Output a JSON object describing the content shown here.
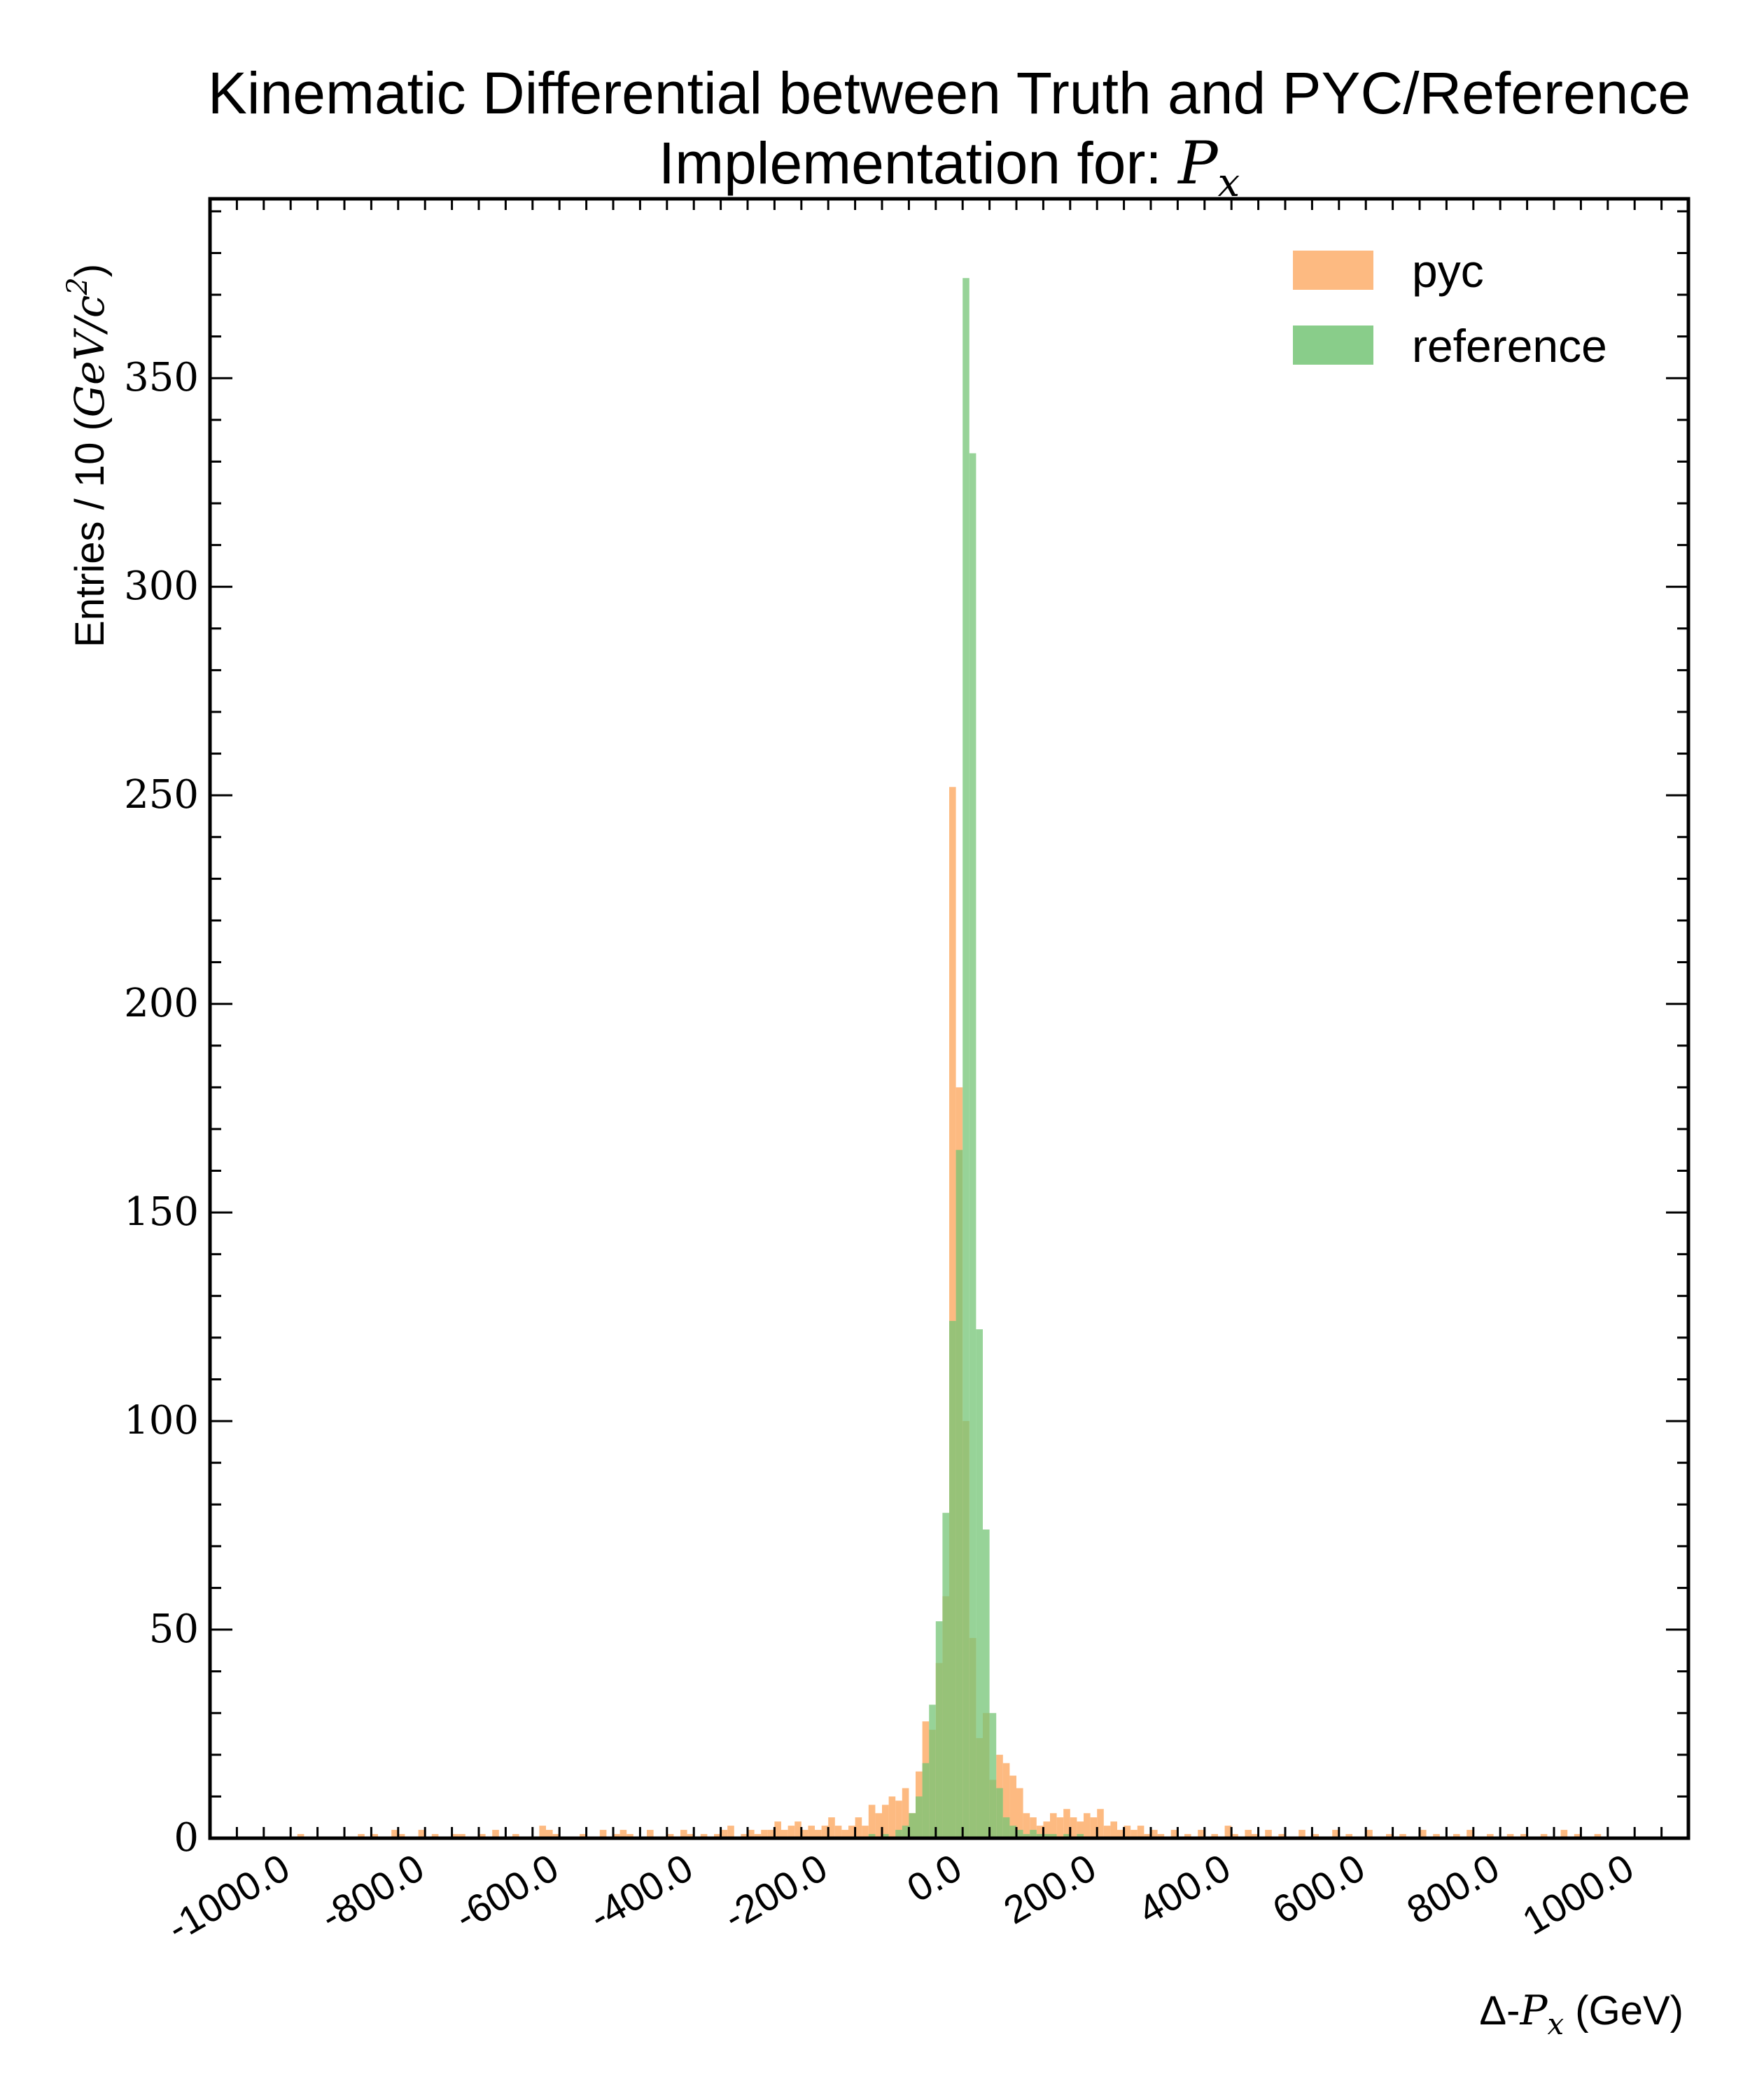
{
  "chart_data": {
    "type": "histogram",
    "title_line1": "Kinematic Differential between Truth and PYC/Reference",
    "title_line2_text": "Implementation for: ",
    "title_line2_math": "P",
    "title_line2_sub": "x",
    "ylabel_text": "Entries / 10 (",
    "ylabel_math": "GeV/c",
    "ylabel_sup": "2",
    "ylabel_close": ")",
    "xlabel_pre": "Δ-",
    "xlabel_math": "P",
    "xlabel_sub": "x",
    "xlabel_post": " (GeV)",
    "xlim": [
      -1100,
      1100
    ],
    "ylim": [
      0,
      393
    ],
    "bin_width": 10,
    "x_ticks": [
      -1000,
      -800,
      -600,
      -400,
      -200,
      0,
      200,
      400,
      600,
      800,
      1000
    ],
    "x_tick_labels": [
      "-1000.0",
      "-800.0",
      "-600.0",
      "-400.0",
      "-200.0",
      "0.0",
      "200.0",
      "400.0",
      "600.0",
      "800.0",
      "1000.0"
    ],
    "y_ticks": [
      0,
      50,
      100,
      150,
      200,
      250,
      300,
      350
    ],
    "y_tick_labels": [
      "0",
      "50",
      "100",
      "150",
      "200",
      "250",
      "300",
      "350"
    ],
    "legend_position": "top-right",
    "series": [
      {
        "name": "pyc",
        "color": "#fdae6b",
        "bins": [
          [
            -970,
            1
          ],
          [
            -880,
            1
          ],
          [
            -860,
            1
          ],
          [
            -830,
            2
          ],
          [
            -820,
            1
          ],
          [
            -790,
            2
          ],
          [
            -770,
            1
          ],
          [
            -740,
            1
          ],
          [
            -730,
            1
          ],
          [
            -700,
            1
          ],
          [
            -680,
            2
          ],
          [
            -650,
            1
          ],
          [
            -610,
            3
          ],
          [
            -600,
            2
          ],
          [
            -590,
            1
          ],
          [
            -550,
            1
          ],
          [
            -520,
            2
          ],
          [
            -500,
            1
          ],
          [
            -490,
            2
          ],
          [
            -480,
            1
          ],
          [
            -450,
            2
          ],
          [
            -420,
            1
          ],
          [
            -400,
            2
          ],
          [
            -390,
            1
          ],
          [
            -370,
            1
          ],
          [
            -350,
            1
          ],
          [
            -340,
            2
          ],
          [
            -330,
            3
          ],
          [
            -310,
            1
          ],
          [
            -300,
            2
          ],
          [
            -290,
            1
          ],
          [
            -280,
            2
          ],
          [
            -270,
            2
          ],
          [
            -260,
            4
          ],
          [
            -250,
            2
          ],
          [
            -240,
            3
          ],
          [
            -230,
            4
          ],
          [
            -220,
            2
          ],
          [
            -210,
            3
          ],
          [
            -200,
            2
          ],
          [
            -190,
            3
          ],
          [
            -180,
            5
          ],
          [
            -170,
            3
          ],
          [
            -160,
            2
          ],
          [
            -150,
            3
          ],
          [
            -140,
            5
          ],
          [
            -130,
            3
          ],
          [
            -120,
            8
          ],
          [
            -110,
            6
          ],
          [
            -100,
            8
          ],
          [
            -90,
            10
          ],
          [
            -80,
            9
          ],
          [
            -70,
            12
          ],
          [
            -60,
            6
          ],
          [
            -50,
            16
          ],
          [
            -40,
            28
          ],
          [
            -30,
            26
          ],
          [
            -20,
            42
          ],
          [
            -10,
            58
          ],
          [
            0,
            252
          ],
          [
            10,
            180
          ],
          [
            20,
            100
          ],
          [
            30,
            48
          ],
          [
            40,
            24
          ],
          [
            50,
            30
          ],
          [
            60,
            14
          ],
          [
            70,
            20
          ],
          [
            80,
            18
          ],
          [
            90,
            15
          ],
          [
            100,
            12
          ],
          [
            110,
            6
          ],
          [
            120,
            5
          ],
          [
            130,
            3
          ],
          [
            140,
            4
          ],
          [
            150,
            6
          ],
          [
            160,
            5
          ],
          [
            170,
            7
          ],
          [
            180,
            5
          ],
          [
            190,
            4
          ],
          [
            200,
            6
          ],
          [
            210,
            5
          ],
          [
            220,
            7
          ],
          [
            230,
            3
          ],
          [
            240,
            4
          ],
          [
            250,
            2
          ],
          [
            260,
            3
          ],
          [
            270,
            2
          ],
          [
            280,
            3
          ],
          [
            290,
            1
          ],
          [
            300,
            2
          ],
          [
            310,
            1
          ],
          [
            330,
            2
          ],
          [
            350,
            1
          ],
          [
            370,
            2
          ],
          [
            390,
            1
          ],
          [
            410,
            3
          ],
          [
            420,
            1
          ],
          [
            440,
            2
          ],
          [
            450,
            1
          ],
          [
            470,
            2
          ],
          [
            490,
            1
          ],
          [
            520,
            2
          ],
          [
            540,
            1
          ],
          [
            570,
            2
          ],
          [
            590,
            1
          ],
          [
            620,
            2
          ],
          [
            650,
            1
          ],
          [
            670,
            1
          ],
          [
            700,
            2
          ],
          [
            720,
            1
          ],
          [
            750,
            1
          ],
          [
            770,
            2
          ],
          [
            800,
            1
          ],
          [
            830,
            1
          ],
          [
            850,
            1
          ],
          [
            880,
            1
          ],
          [
            910,
            2
          ],
          [
            930,
            1
          ],
          [
            960,
            1
          ]
        ]
      },
      {
        "name": "reference",
        "color": "#74c476",
        "bins": [
          [
            -120,
            1
          ],
          [
            -100,
            1
          ],
          [
            -80,
            2
          ],
          [
            -70,
            3
          ],
          [
            -60,
            6
          ],
          [
            -50,
            10
          ],
          [
            -40,
            18
          ],
          [
            -30,
            32
          ],
          [
            -20,
            52
          ],
          [
            -10,
            78
          ],
          [
            0,
            124
          ],
          [
            10,
            165
          ],
          [
            20,
            374
          ],
          [
            30,
            332
          ],
          [
            40,
            122
          ],
          [
            50,
            74
          ],
          [
            60,
            30
          ],
          [
            70,
            12
          ],
          [
            80,
            5
          ],
          [
            90,
            3
          ],
          [
            100,
            2
          ],
          [
            110,
            1
          ],
          [
            120,
            2
          ],
          [
            130,
            1
          ],
          [
            140,
            1
          ],
          [
            150,
            1
          ],
          [
            170,
            1
          ],
          [
            190,
            1
          ]
        ]
      }
    ]
  }
}
